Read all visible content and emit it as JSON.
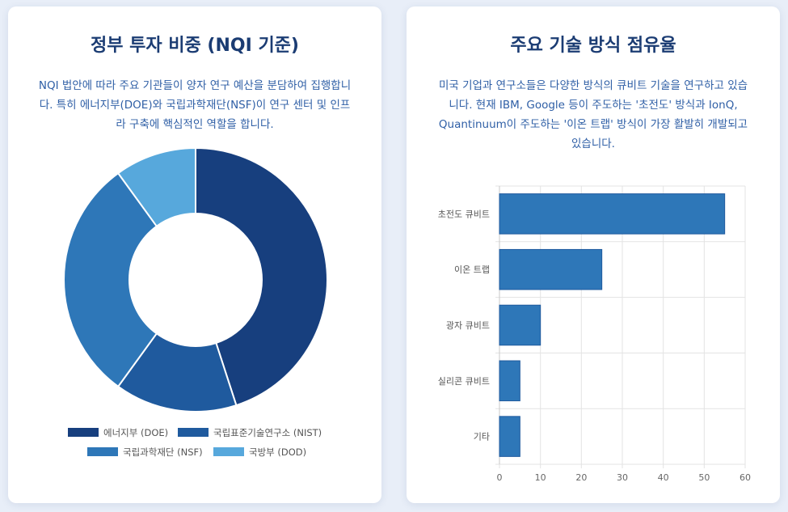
{
  "left_card": {
    "title": "정부 투자 비중 (NQI 기준)",
    "description": "NQI 법안에 따라 주요 기관들이 양자 연구 예산을 분담하여 집행합니다. 특히 에너지부(DOE)와 국립과학재단(NSF)이 연구 센터 및 인프라 구축에 핵심적인 역할을 합니다."
  },
  "right_card": {
    "title": "주요 기술 방식 점유율",
    "description": "미국 기업과 연구소들은 다양한 방식의 큐비트 기술을 연구하고 있습니다. 현재 IBM, Google 등이 주도하는 '초전도' 방식과 IonQ, Quantinuum이 주도하는 '이온 트랩' 방식이 가장 활발히 개발되고 있습니다."
  },
  "chart_data": [
    {
      "type": "pie",
      "variant": "doughnut",
      "labels": [
        "에너지부 (DOE)",
        "국립표준기술연구소 (NIST)",
        "국립과학재단 (NSF)",
        "국방부 (DOD)"
      ],
      "values": [
        45,
        15,
        30,
        10
      ],
      "colors": [
        "#173f7e",
        "#1f5a9e",
        "#2e77b8",
        "#57a8dc"
      ],
      "legend_position": "bottom"
    },
    {
      "type": "bar",
      "orientation": "horizontal",
      "categories": [
        "초전도 큐비트",
        "이온 트랩",
        "광자 큐비트",
        "실리콘 큐비트",
        "기타"
      ],
      "values": [
        55,
        25,
        10,
        5,
        5
      ],
      "xlim": [
        0,
        60
      ],
      "xticks": [
        0,
        10,
        20,
        30,
        40,
        50,
        60
      ],
      "grid": true,
      "color": "#2e77b8"
    }
  ]
}
